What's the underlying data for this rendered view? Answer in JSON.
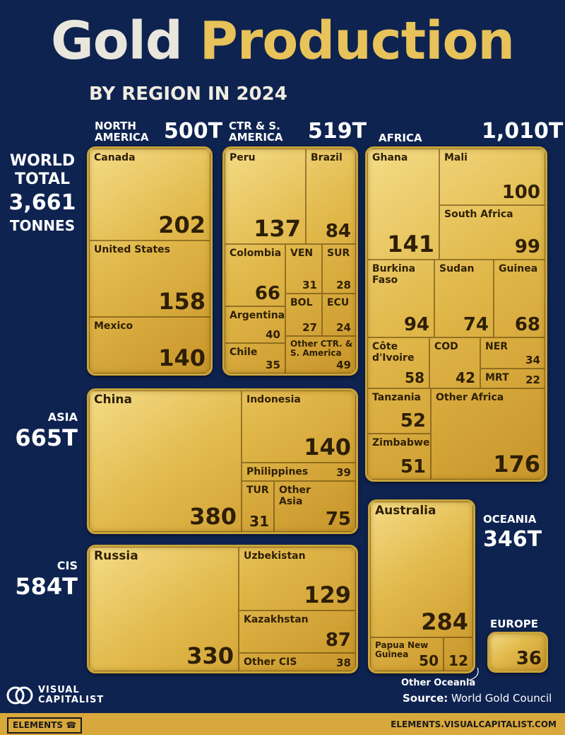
{
  "title": {
    "part1": "Gold",
    "part2": "Production"
  },
  "subtitle": "BY REGION IN 2024",
  "world": {
    "line1": "WORLD",
    "line2": "TOTAL",
    "value": "3,661",
    "unit": "TONNES"
  },
  "regions": {
    "north_america": {
      "name_1": "NORTH",
      "name_2": "AMERICA",
      "total": "500T"
    },
    "ctr_s_america": {
      "name_1": "CTR & S.",
      "name_2": "AMERICA",
      "total": "519T"
    },
    "africa": {
      "name": "AFRICA",
      "total": "1,010T"
    },
    "asia": {
      "name": "ASIA",
      "total": "665T"
    },
    "cis": {
      "name": "CIS",
      "total": "584T"
    },
    "oceania": {
      "name": "OCEANIA",
      "total": "346T"
    },
    "europe": {
      "name": "EUROPE",
      "value": "36"
    }
  },
  "chart_data": {
    "type": "treemap",
    "title": "Gold Production",
    "subtitle": "BY REGION IN 2024",
    "unit": "tonnes",
    "regions": [
      {
        "name": "NORTH AMERICA",
        "total": 500,
        "countries": [
          {
            "name": "Canada",
            "value": 202
          },
          {
            "name": "United States",
            "value": 158
          },
          {
            "name": "Mexico",
            "value": 140
          }
        ]
      },
      {
        "name": "CTR & S. AMERICA",
        "total": 519,
        "countries": [
          {
            "name": "Peru",
            "value": 137
          },
          {
            "name": "Brazil",
            "value": 84
          },
          {
            "name": "Colombia",
            "value": 66
          },
          {
            "name": "VEN",
            "value": 31
          },
          {
            "name": "SUR",
            "value": 28
          },
          {
            "name": "Argentina",
            "value": 40
          },
          {
            "name": "BOL",
            "value": 27
          },
          {
            "name": "ECU",
            "value": 24
          },
          {
            "name": "Chile",
            "value": 35
          },
          {
            "name": "Other CTR. & S. America",
            "value": 49
          }
        ]
      },
      {
        "name": "AFRICA",
        "total": 1010,
        "countries": [
          {
            "name": "Ghana",
            "value": 141
          },
          {
            "name": "Mali",
            "value": 100
          },
          {
            "name": "South Africa",
            "value": 99
          },
          {
            "name": "Burkina Faso",
            "value": 94
          },
          {
            "name": "Sudan",
            "value": 74
          },
          {
            "name": "Guinea",
            "value": 68
          },
          {
            "name": "Côte d'Ivoire",
            "value": 58
          },
          {
            "name": "COD",
            "value": 42
          },
          {
            "name": "NER",
            "value": 34
          },
          {
            "name": "MRT",
            "value": 22
          },
          {
            "name": "Tanzania",
            "value": 52
          },
          {
            "name": "Zimbabwe",
            "value": 51
          },
          {
            "name": "Other Africa",
            "value": 176
          }
        ]
      },
      {
        "name": "ASIA",
        "total": 665,
        "countries": [
          {
            "name": "China",
            "value": 380
          },
          {
            "name": "Indonesia",
            "value": 140
          },
          {
            "name": "Philippines",
            "value": 39
          },
          {
            "name": "TUR",
            "value": 31
          },
          {
            "name": "Other Asia",
            "value": 75
          }
        ]
      },
      {
        "name": "CIS",
        "total": 584,
        "countries": [
          {
            "name": "Russia",
            "value": 330
          },
          {
            "name": "Uzbekistan",
            "value": 129
          },
          {
            "name": "Kazakhstan",
            "value": 87
          },
          {
            "name": "Other CIS",
            "value": 38
          }
        ]
      },
      {
        "name": "OCEANIA",
        "total": 346,
        "countries": [
          {
            "name": "Australia",
            "value": 284
          },
          {
            "name": "Papua New Guinea",
            "value": 50
          },
          {
            "name": "Other Oceania",
            "value": 12
          }
        ]
      },
      {
        "name": "EUROPE",
        "total": 36,
        "countries": [
          {
            "name": "Europe",
            "value": 36
          }
        ]
      }
    ]
  },
  "labels": {
    "canada": "Canada",
    "us": "United States",
    "mexico": "Mexico",
    "peru": "Peru",
    "brazil": "Brazil",
    "colombia": "Colombia",
    "ven": "VEN",
    "sur": "SUR",
    "argentina": "Argentina",
    "bol": "BOL",
    "ecu": "ECU",
    "chile": "Chile",
    "other_csa": "Other CTR. & S. America",
    "ghana": "Ghana",
    "mali": "Mali",
    "south_africa": "South Africa",
    "burkina": "Burkina Faso",
    "sudan": "Sudan",
    "guinea": "Guinea",
    "cote": "Côte d'Ivoire",
    "cod": "COD",
    "ner": "NER",
    "mrt": "MRT",
    "tanzania": "Tanzania",
    "zimbabwe": "Zimbabwe",
    "other_africa": "Other Africa",
    "china": "China",
    "indonesia": "Indonesia",
    "philippines": "Philippines",
    "tur": "TUR",
    "other_asia": "Other Asia",
    "russia": "Russia",
    "uzbekistan": "Uzbekistan",
    "kazakhstan": "Kazakhstan",
    "other_cis": "Other CIS",
    "australia": "Australia",
    "png": "Papua New Guinea",
    "other_oceania": "Other Oceania"
  },
  "values": {
    "canada": "202",
    "us": "158",
    "mexico": "140",
    "peru": "137",
    "brazil": "84",
    "colombia": "66",
    "ven": "31",
    "sur": "28",
    "argentina": "40",
    "bol": "27",
    "ecu": "24",
    "chile": "35",
    "other_csa": "49",
    "ghana": "141",
    "mali": "100",
    "south_africa": "99",
    "burkina": "94",
    "sudan": "74",
    "guinea": "68",
    "cote": "58",
    "cod": "42",
    "ner": "34",
    "mrt": "22",
    "tanzania": "52",
    "zimbabwe": "51",
    "other_africa": "176",
    "china": "380",
    "indonesia": "140",
    "philippines": "39",
    "tur": "31",
    "other_asia": "75",
    "russia": "330",
    "uzbekistan": "129",
    "kazakhstan": "87",
    "other_cis": "38",
    "australia": "284",
    "png": "50",
    "other_oceania": "12"
  },
  "source": {
    "label": "Source:",
    "text": "World Gold Council"
  },
  "brand": {
    "line1": "VISUAL",
    "line2": "CAPITALIST",
    "elements": "ELEMENTS",
    "site": "ELEMENTS.VISUALCAPITALIST.COM"
  }
}
